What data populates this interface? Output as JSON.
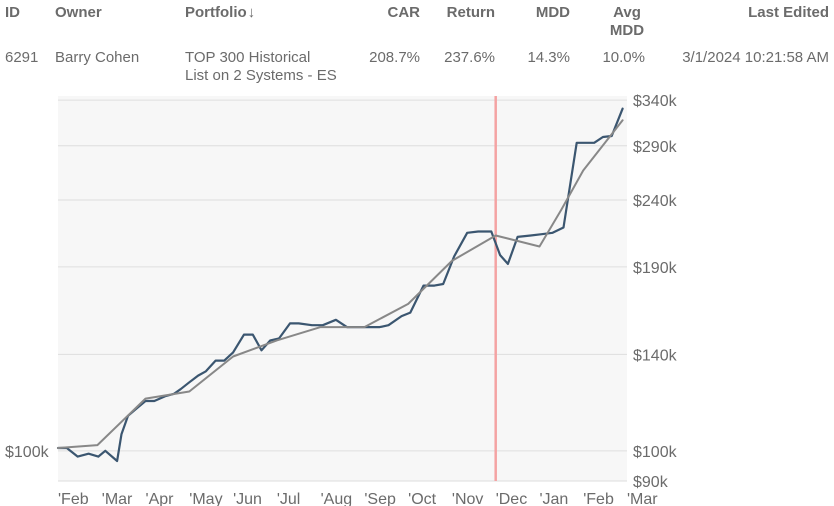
{
  "table": {
    "columns": {
      "id": "ID",
      "owner": "Owner",
      "portfolio": "Portfolio",
      "sort_icon": "↓",
      "car": "CAR",
      "return": "Return",
      "mdd": "MDD",
      "avg_mdd_line1": "Avg",
      "avg_mdd_line2": "MDD",
      "last_edited": "Last Edited"
    },
    "row": {
      "id": "6291",
      "owner": "Barry Cohen",
      "portfolio_line1": "TOP 300 Historical",
      "portfolio_line2": "List on 2 Systems - ES",
      "car": "208.7%",
      "return": "237.6%",
      "mdd": "14.3%",
      "avg_mdd": "10.0%",
      "last_edited": "3/1/2024 10:21:58 AM"
    }
  },
  "chart_data": {
    "type": "line",
    "y_scale": "log",
    "ylim": [
      90000,
      345000
    ],
    "y_ticks": [
      {
        "value": 340000,
        "label": "$340k"
      },
      {
        "value": 290000,
        "label": "$290k"
      },
      {
        "value": 240000,
        "label": "$240k"
      },
      {
        "value": 190000,
        "label": "$190k"
      },
      {
        "value": 140000,
        "label": "$140k"
      },
      {
        "value": 100000,
        "label": "$100k"
      },
      {
        "value": 90000,
        "label": "$90k"
      }
    ],
    "left_y_label": "$100k",
    "x_range": [
      0,
      13
    ],
    "x_ticks": [
      "'Feb",
      "'Mar",
      "'Apr",
      "'May",
      "'Jun",
      "'Jul",
      "'Aug",
      "'Sep",
      "'Oct",
      "'Nov",
      "'Dec",
      "'Jan",
      "'Feb",
      "'Mar"
    ],
    "marker_line": {
      "x": 10,
      "color": "#f4a3a3"
    },
    "colors": {
      "main": "#3b5670",
      "trend": "#888888",
      "plot_bg": "#f7f7f7",
      "grid": "#dedede"
    },
    "series": [
      {
        "role": "main",
        "x": [
          0,
          0.2,
          0.45,
          0.7,
          0.92,
          1.08,
          1.35,
          1.45,
          1.6,
          1.8,
          2.0,
          2.2,
          2.45,
          2.65,
          2.8,
          3.0,
          3.2,
          3.38,
          3.6,
          3.8,
          4.0,
          4.25,
          4.45,
          4.65,
          4.85,
          5.05,
          5.3,
          5.5,
          5.8,
          6.05,
          6.35,
          6.6,
          6.85,
          7.1,
          7.35,
          7.55,
          7.85,
          8.05,
          8.35,
          8.6,
          8.8,
          9.05,
          9.35,
          9.6,
          9.9,
          10.1,
          10.28,
          10.5,
          10.8,
          11.05,
          11.3,
          11.55,
          11.85,
          12.1,
          12.25,
          12.45,
          12.65,
          12.9
        ],
        "y": [
          101000,
          101000,
          98000,
          99000,
          98000,
          100000,
          96500,
          106000,
          113000,
          116000,
          119000,
          119000,
          121000,
          122000,
          124000,
          127000,
          130000,
          132000,
          137000,
          137000,
          141000,
          150000,
          150000,
          142000,
          147000,
          148000,
          156000,
          156000,
          155000,
          155000,
          158000,
          154000,
          154000,
          154000,
          154000,
          155000,
          160000,
          162000,
          178000,
          178000,
          179000,
          197000,
          214000,
          215000,
          215000,
          198000,
          192000,
          211000,
          212000,
          213000,
          214000,
          218000,
          293000,
          293000,
          293000,
          299000,
          300000,
          330000
        ]
      },
      {
        "role": "trend",
        "x": [
          0,
          0.9,
          2.0,
          3.0,
          4.0,
          5.0,
          6.0,
          7.0,
          8.0,
          9.0,
          10.0,
          11.0,
          11.5,
          12.0,
          12.9
        ],
        "y": [
          101000,
          102000,
          120000,
          123000,
          139000,
          147000,
          154000,
          154000,
          167000,
          194000,
          212000,
          204000,
          232000,
          266000,
          317000
        ]
      }
    ]
  }
}
